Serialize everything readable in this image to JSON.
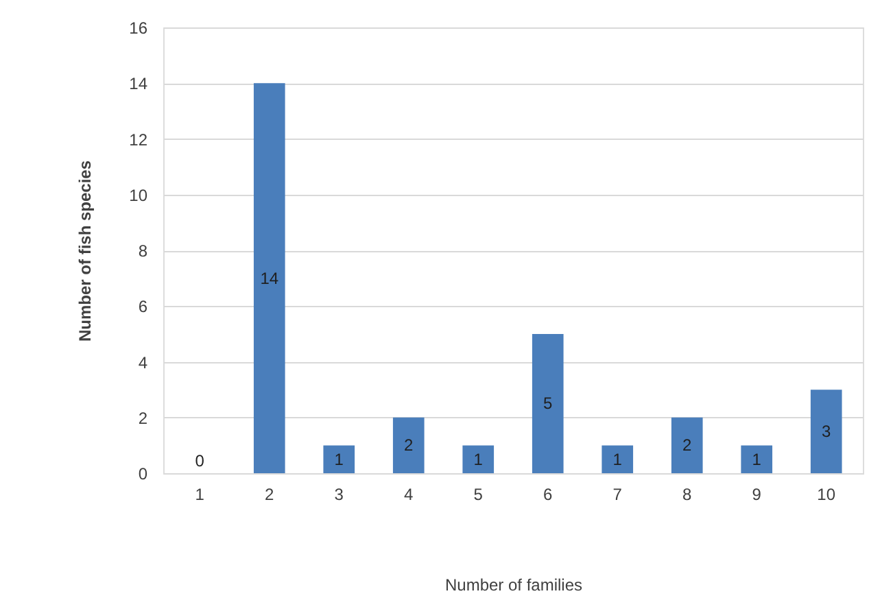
{
  "chart_data": {
    "type": "bar",
    "xlabel": "Number of families",
    "ylabel": "Number of fish species",
    "categories": [
      "1",
      "2",
      "3",
      "4",
      "5",
      "6",
      "7",
      "8",
      "9",
      "10"
    ],
    "values": [
      0,
      14,
      1,
      2,
      1,
      5,
      1,
      2,
      1,
      3
    ],
    "color": "#4a7ebb",
    "ylim": [
      0,
      16
    ],
    "yticks": [
      0,
      2,
      4,
      6,
      8,
      10,
      12,
      14,
      16
    ],
    "grid": "y",
    "data_labels": true
  }
}
